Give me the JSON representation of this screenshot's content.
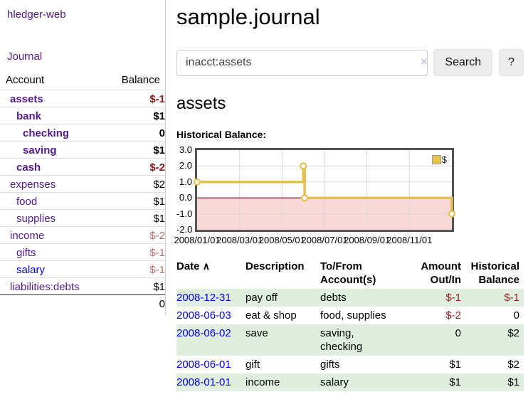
{
  "app": {
    "brand": "hledger-web"
  },
  "nav": {
    "journal": "Journal"
  },
  "sidebar": {
    "header": {
      "account": "Account",
      "balance": "Balance"
    },
    "accounts": [
      {
        "name": "assets",
        "balance": "$-1",
        "depth": 1,
        "bold": true,
        "negative": true,
        "blue": false
      },
      {
        "name": "bank",
        "balance": "$1",
        "depth": 2,
        "bold": true,
        "negative": false,
        "blue": false
      },
      {
        "name": "checking",
        "balance": "0",
        "depth": 3,
        "bold": true,
        "negative": false,
        "blue": false
      },
      {
        "name": "saving",
        "balance": "$1",
        "depth": 3,
        "bold": true,
        "negative": false,
        "blue": false
      },
      {
        "name": "cash",
        "balance": "$-2",
        "depth": 2,
        "bold": true,
        "negative": true,
        "blue": false
      },
      {
        "name": "expenses",
        "balance": "$2",
        "depth": 1,
        "bold": false,
        "negative": false,
        "blue": false
      },
      {
        "name": "food",
        "balance": "$1",
        "depth": 2,
        "bold": false,
        "negative": false,
        "blue": false
      },
      {
        "name": "supplies",
        "balance": "$1",
        "depth": 2,
        "bold": false,
        "negative": false,
        "blue": false
      },
      {
        "name": "income",
        "balance": "$-2",
        "depth": 1,
        "bold": false,
        "negative": true,
        "blue": false
      },
      {
        "name": "gifts",
        "balance": "$-1",
        "depth": 2,
        "bold": false,
        "negative": true,
        "blue": false
      },
      {
        "name": "salary",
        "balance": "$-1",
        "depth": 2,
        "bold": false,
        "negative": true,
        "blue": true
      },
      {
        "name": "liabilities:debts",
        "balance": "$1",
        "depth": 1,
        "bold": false,
        "negative": false,
        "blue": false
      }
    ],
    "total": "0"
  },
  "main": {
    "title": "sample.journal",
    "search": {
      "value": "inacct:assets",
      "clear_icon": "×",
      "search_button": "Search",
      "help_button": "?"
    },
    "register": {
      "heading": "assets",
      "chart_title": "Historical Balance:"
    }
  },
  "chart_data": {
    "type": "line",
    "title": "Historical Balance:",
    "series": [
      {
        "name": "$",
        "step": true,
        "points": [
          [
            "2008-01-01",
            1.0
          ],
          [
            "2008-06-01",
            2.0
          ],
          [
            "2008-06-03",
            0.0
          ],
          [
            "2008-12-31",
            -1.0
          ]
        ]
      }
    ],
    "x_range": [
      "2008-01-01",
      "2009-01-01"
    ],
    "ylim": [
      -2.0,
      3.0
    ],
    "yticks": [
      3.0,
      2.0,
      1.0,
      0.0,
      -1.0,
      -2.0
    ],
    "xtick_labels": [
      "2008/01/01",
      "2008/03/01",
      "2008/05/01",
      "2008/07/01",
      "2008/09/01",
      "2008/11/01"
    ],
    "xtick_months": [
      0,
      2,
      4,
      6,
      8,
      10
    ],
    "grid": true,
    "legend": {
      "position": "top-right",
      "label": "$"
    },
    "colors": {
      "line": "#e3c04f",
      "marker_fill": "#ffffff",
      "negative_region": "#f9d8d8",
      "zero_line": "#7a0b0b",
      "grid": "#d8d8d8",
      "legend_swatch": "#e8c44f"
    }
  },
  "table": {
    "headers": [
      {
        "label": "Date",
        "sort_icon": "∧"
      },
      {
        "label": "Description"
      },
      {
        "label": "To/From Account(s)"
      },
      {
        "label": "Amount Out/In",
        "align": "right"
      },
      {
        "label": "Historical Balance",
        "align": "right"
      }
    ],
    "rows": [
      {
        "date": "2008-12-31",
        "description": "pay off",
        "accounts": "debts",
        "amount": "$-1",
        "amount_negative": true,
        "balance": "$-1",
        "balance_negative": true
      },
      {
        "date": "2008-06-03",
        "description": "eat & shop",
        "accounts": "food, supplies",
        "amount": "$-2",
        "amount_negative": true,
        "balance": "0",
        "balance_negative": false
      },
      {
        "date": "2008-06-02",
        "description": "save",
        "accounts": "saving, checking",
        "amount": "0",
        "amount_negative": false,
        "balance": "$2",
        "balance_negative": false
      },
      {
        "date": "2008-06-01",
        "description": "gift",
        "accounts": "gifts",
        "amount": "$1",
        "amount_negative": false,
        "balance": "$2",
        "balance_negative": false
      },
      {
        "date": "2008-01-01",
        "description": "income",
        "accounts": "salary",
        "amount": "$1",
        "amount_negative": false,
        "balance": "$1",
        "balance_negative": false
      }
    ]
  }
}
